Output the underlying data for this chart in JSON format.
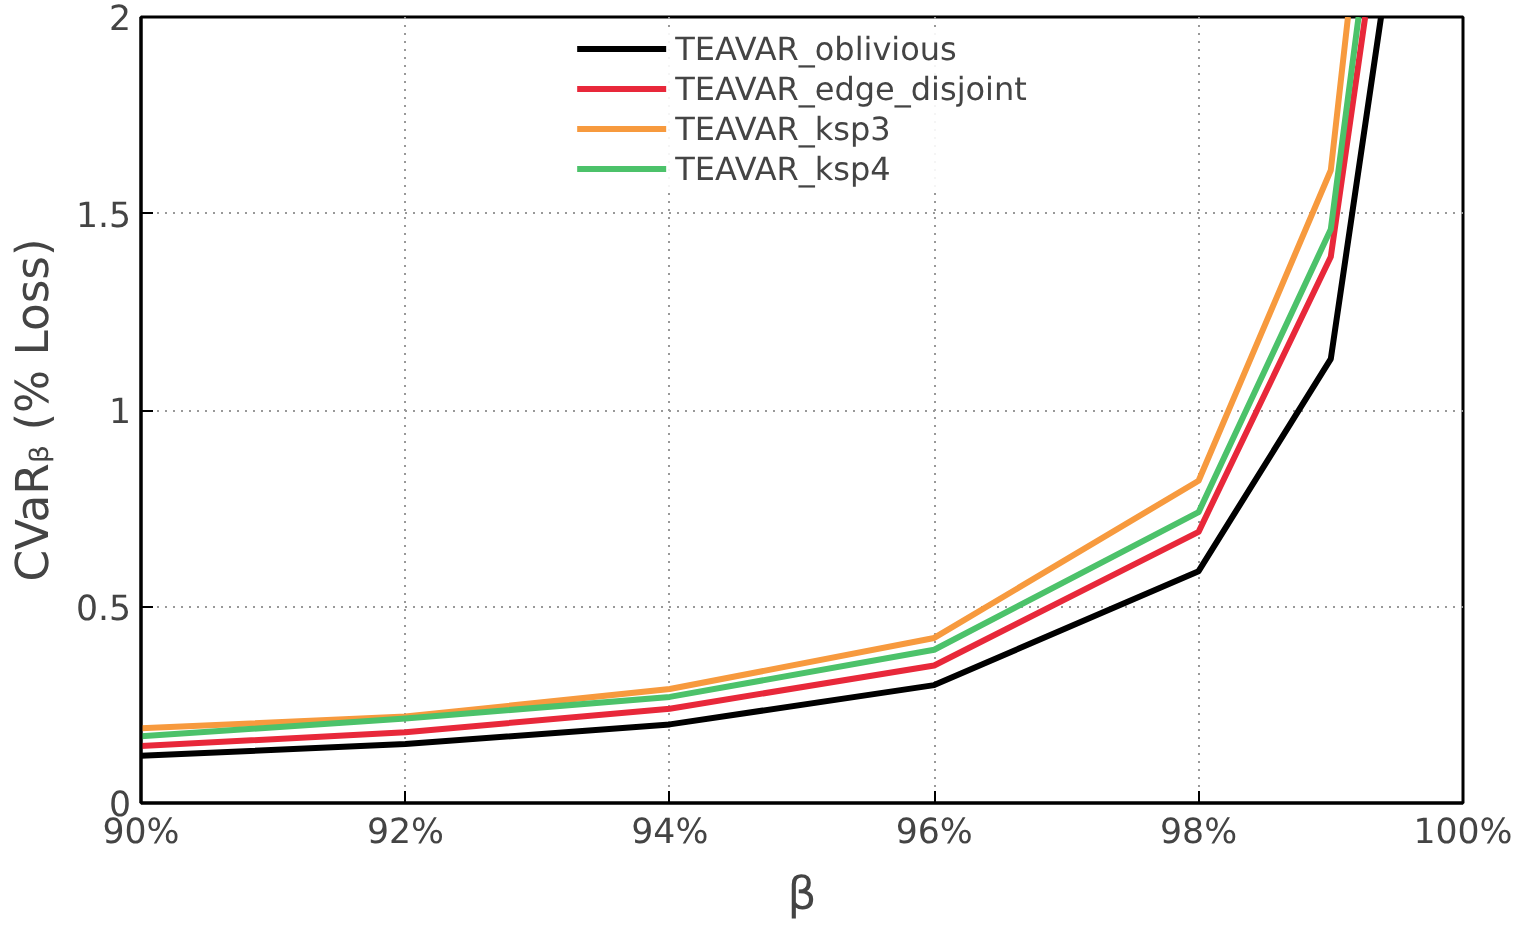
{
  "chart_data": {
    "type": "line",
    "xlabel": "β",
    "ylabel": "CVaRᵦ (% Loss)",
    "xlim": [
      90,
      100
    ],
    "ylim": [
      0,
      2
    ],
    "xticks": [
      {
        "value": 90,
        "label": "90%"
      },
      {
        "value": 92,
        "label": "92%"
      },
      {
        "value": 94,
        "label": "94%"
      },
      {
        "value": 96,
        "label": "96%"
      },
      {
        "value": 98,
        "label": "98%"
      },
      {
        "value": 100,
        "label": "100%"
      }
    ],
    "yticks": [
      0,
      0.5,
      1,
      1.5,
      2
    ],
    "grid": true,
    "legend": "top",
    "line_style": "solid",
    "marker": "none",
    "series": [
      {
        "name": "TEAVAR_oblivious",
        "color": "#000000",
        "x": [
          90,
          92,
          94,
          96,
          98,
          99,
          99.38
        ],
        "values": [
          0.12,
          0.15,
          0.2,
          0.3,
          0.59,
          1.13,
          2
        ]
      },
      {
        "name": "TEAVAR_edge_disjoint",
        "color": "#e8283a",
        "x": [
          90,
          92,
          94,
          96,
          98,
          99,
          99.26
        ],
        "values": [
          0.145,
          0.18,
          0.24,
          0.35,
          0.69,
          1.39,
          2
        ]
      },
      {
        "name": "TEAVAR_ksp3",
        "color": "#f79a3e",
        "x": [
          90,
          92,
          94,
          96,
          98,
          99,
          99.13
        ],
        "values": [
          0.19,
          0.22,
          0.29,
          0.42,
          0.82,
          1.61,
          2
        ]
      },
      {
        "name": "TEAVAR_ksp4",
        "color": "#4cc26a",
        "x": [
          90,
          92,
          94,
          96,
          98,
          99,
          99.21
        ],
        "values": [
          0.17,
          0.215,
          0.27,
          0.39,
          0.74,
          1.46,
          2
        ]
      }
    ]
  }
}
